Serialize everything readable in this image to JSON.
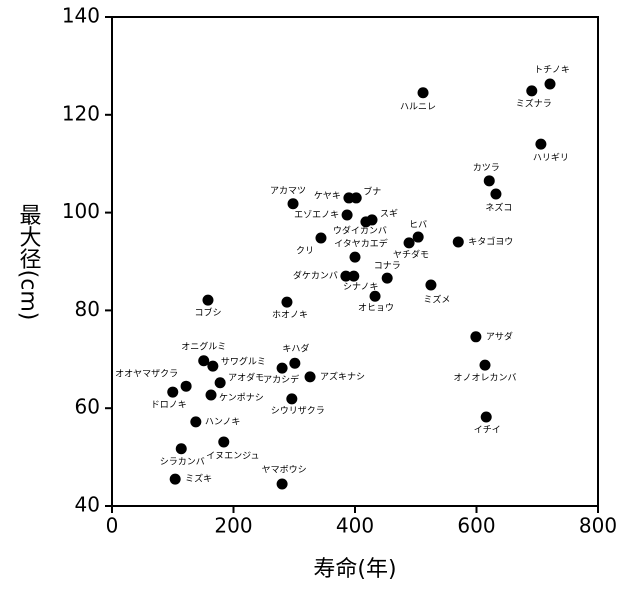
{
  "chart_data": {
    "type": "scatter",
    "x_label": "寿命(年)",
    "y_label": "最大径(cm)",
    "xlim": [
      0,
      800
    ],
    "xticks": [
      0,
      200,
      400,
      600,
      800
    ],
    "ylim": [
      40,
      140
    ],
    "yticks": [
      40,
      60,
      80,
      100,
      120,
      140
    ],
    "color": "#000000",
    "labels": [
      "トチノキ",
      "ミズナラ",
      "ハルニレ",
      "ハリギリ",
      "カツラ",
      "ネズコ",
      "アカマツ",
      "ケヤキ",
      "ブナ",
      "エゾエノキ",
      "スギ",
      "ウダイカンバ",
      "ヒバ",
      "クリ",
      "キタゴヨウ",
      "ヤチダモ",
      "イタヤカエデ",
      "ダケカンバ",
      "シナノキ",
      "コナラ",
      "ミズメ",
      "オヒョウ",
      "コブシ",
      "ホオノキ",
      "アサダ",
      "オニグルミ",
      "サワグルミ",
      "キハダ",
      "アカシデ",
      "オノオレカンバ",
      "アズキナシ",
      "オオヤマザクラ",
      "アオダモ",
      "ドロノキ",
      "ケンポナシ",
      "シウリザクラ",
      "イチイ",
      "ハンノキ",
      "イヌエンジュ",
      "シラカンバ",
      "ミズキ",
      "ヤマボウシ"
    ],
    "x": [
      721,
      691,
      512,
      706,
      621,
      632,
      298,
      390,
      402,
      387,
      428,
      418,
      504,
      344,
      570,
      489,
      400,
      385,
      398,
      453,
      525,
      433,
      158,
      288,
      599,
      151,
      166,
      301,
      280,
      614,
      326,
      122,
      178,
      100,
      163,
      296,
      616,
      138,
      184,
      114,
      104,
      280
    ],
    "values": [
      126.3,
      124.9,
      124.5,
      114.0,
      106.5,
      103.8,
      101.8,
      103.0,
      103.0,
      99.5,
      98.5,
      98.1,
      95.0,
      94.8,
      94.0,
      93.8,
      90.9,
      87.0,
      87.0,
      86.6,
      85.2,
      82.9,
      82.1,
      81.7,
      74.6,
      69.7,
      68.6,
      69.2,
      68.2,
      68.8,
      66.4,
      64.5,
      65.2,
      63.3,
      62.7,
      61.9,
      58.2,
      57.2,
      53.1,
      51.7,
      45.5,
      44.5
    ]
  }
}
